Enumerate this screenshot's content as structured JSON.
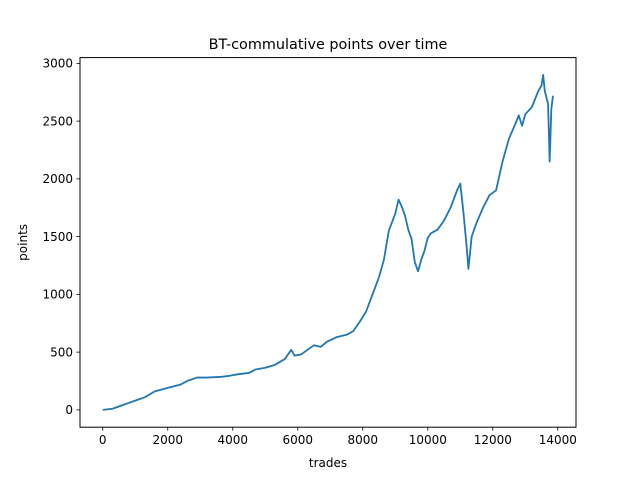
{
  "chart_data": {
    "type": "line",
    "title": "BT-commulative points over time",
    "xlabel": "trades",
    "ylabel": "points",
    "xlim": [
      -700,
      14560
    ],
    "ylim": [
      -150,
      3050
    ],
    "xticks": [
      0,
      2000,
      4000,
      6000,
      8000,
      10000,
      12000,
      14000
    ],
    "yticks": [
      0,
      500,
      1000,
      1500,
      2000,
      2500,
      3000
    ],
    "xtick_labels": [
      "0",
      "2000",
      "4000",
      "6000",
      "8000",
      "10000",
      "12000",
      "14000"
    ],
    "ytick_labels": [
      "0",
      "500",
      "1000",
      "1500",
      "2000",
      "2500",
      "3000"
    ],
    "grid": false,
    "line_color": "#1f77b4",
    "series": [
      {
        "points": [
          [
            0,
            0
          ],
          [
            300,
            10
          ],
          [
            600,
            40
          ],
          [
            1000,
            80
          ],
          [
            1300,
            110
          ],
          [
            1600,
            160
          ],
          [
            2000,
            190
          ],
          [
            2400,
            220
          ],
          [
            2600,
            250
          ],
          [
            2900,
            280
          ],
          [
            3200,
            280
          ],
          [
            3600,
            285
          ],
          [
            3900,
            295
          ],
          [
            4200,
            310
          ],
          [
            4500,
            320
          ],
          [
            4700,
            350
          ],
          [
            5000,
            365
          ],
          [
            5300,
            390
          ],
          [
            5600,
            440
          ],
          [
            5800,
            520
          ],
          [
            5900,
            470
          ],
          [
            6100,
            480
          ],
          [
            6300,
            520
          ],
          [
            6500,
            560
          ],
          [
            6700,
            545
          ],
          [
            6900,
            590
          ],
          [
            7200,
            630
          ],
          [
            7500,
            650
          ],
          [
            7700,
            680
          ],
          [
            7900,
            760
          ],
          [
            8100,
            850
          ],
          [
            8300,
            1000
          ],
          [
            8500,
            1150
          ],
          [
            8650,
            1300
          ],
          [
            8800,
            1550
          ],
          [
            9000,
            1700
          ],
          [
            9100,
            1820
          ],
          [
            9200,
            1760
          ],
          [
            9300,
            1680
          ],
          [
            9400,
            1560
          ],
          [
            9500,
            1480
          ],
          [
            9600,
            1280
          ],
          [
            9700,
            1200
          ],
          [
            9800,
            1300
          ],
          [
            9900,
            1380
          ],
          [
            10000,
            1490
          ],
          [
            10100,
            1530
          ],
          [
            10300,
            1560
          ],
          [
            10500,
            1640
          ],
          [
            10700,
            1750
          ],
          [
            10900,
            1900
          ],
          [
            11000,
            1960
          ],
          [
            11100,
            1700
          ],
          [
            11200,
            1400
          ],
          [
            11250,
            1220
          ],
          [
            11350,
            1500
          ],
          [
            11500,
            1620
          ],
          [
            11700,
            1750
          ],
          [
            11900,
            1860
          ],
          [
            12100,
            1900
          ],
          [
            12300,
            2150
          ],
          [
            12500,
            2350
          ],
          [
            12700,
            2480
          ],
          [
            12800,
            2550
          ],
          [
            12900,
            2460
          ],
          [
            13000,
            2560
          ],
          [
            13200,
            2620
          ],
          [
            13400,
            2760
          ],
          [
            13500,
            2810
          ],
          [
            13550,
            2900
          ],
          [
            13600,
            2760
          ],
          [
            13700,
            2650
          ],
          [
            13750,
            2150
          ],
          [
            13800,
            2600
          ],
          [
            13850,
            2720
          ]
        ]
      }
    ]
  }
}
